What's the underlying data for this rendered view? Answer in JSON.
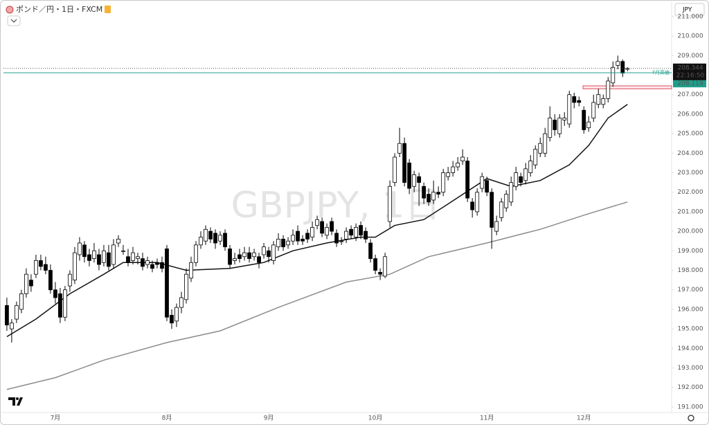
{
  "header": {
    "symbol": "ポンド／円・1日・FXCM",
    "currency": "JPY"
  },
  "chart_data": {
    "type": "candlestick",
    "watermark": "GBPJPY, 1日",
    "bull_color": "#ffffff",
    "bear_color": "#000000",
    "xlim": [
      -0.7,
      137.1
    ],
    "ylim": [
      190.75,
      211.67
    ],
    "xticks": [
      {
        "value": 10,
        "label": "7月"
      },
      {
        "value": 33,
        "label": "8月"
      },
      {
        "value": 54,
        "label": "9月"
      },
      {
        "value": 76,
        "label": "10月"
      },
      {
        "value": 99,
        "label": "11月"
      },
      {
        "value": 119,
        "label": "12月"
      }
    ],
    "yticks": [
      {
        "value": 191,
        "label": "191.000"
      },
      {
        "value": 192,
        "label": "192.000"
      },
      {
        "value": 193,
        "label": "193.000"
      },
      {
        "value": 194,
        "label": "194.000"
      },
      {
        "value": 195,
        "label": "195.000"
      },
      {
        "value": 196,
        "label": "196.000"
      },
      {
        "value": 197,
        "label": "197.000"
      },
      {
        "value": 198,
        "label": "198.000"
      },
      {
        "value": 199,
        "label": "199.000"
      },
      {
        "value": 200,
        "label": "200.000"
      },
      {
        "value": 201,
        "label": "201.000"
      },
      {
        "value": 202,
        "label": "202.000"
      },
      {
        "value": 203,
        "label": "203.000"
      },
      {
        "value": 204,
        "label": "204.000"
      },
      {
        "value": 205,
        "label": "205.000"
      },
      {
        "value": 206,
        "label": "206.000"
      },
      {
        "value": 207,
        "label": "207.000"
      },
      {
        "value": 208,
        "label": "208.000"
      },
      {
        "value": 209,
        "label": "209.000"
      },
      {
        "value": 210,
        "label": "210.000"
      },
      {
        "value": 211,
        "label": "211.000"
      }
    ],
    "last_price": 208.344,
    "countdown": "22:16:50",
    "levels": [
      {
        "label": "7月高値",
        "value": 208.119,
        "color": "#1e9e8a"
      }
    ],
    "zone": {
      "low": 207.3,
      "high": 207.45,
      "color": "#e0495a"
    },
    "moving_averages": [
      {
        "color": "#111111",
        "x": [
          0,
          6,
          13,
          20,
          24,
          31,
          37,
          46,
          53,
          59,
          66,
          73,
          76,
          80,
          86,
          91,
          99,
          104,
          110,
          116,
          120,
          124,
          128
        ],
        "values": [
          194.6,
          195.5,
          196.8,
          197.8,
          198.4,
          198.4,
          198.0,
          198.1,
          198.4,
          199.0,
          199.4,
          199.7,
          199.7,
          200.3,
          200.6,
          201.4,
          202.7,
          202.3,
          202.6,
          203.4,
          204.4,
          205.8,
          206.5
        ]
      },
      {
        "color": "#8c8c8c",
        "x": [
          0,
          10,
          20,
          33,
          44,
          56,
          70,
          79,
          87,
          99,
          110,
          120,
          128
        ],
        "values": [
          191.9,
          192.5,
          193.4,
          194.3,
          194.9,
          196.1,
          197.4,
          197.8,
          198.7,
          199.4,
          200.1,
          200.9,
          201.5
        ]
      }
    ],
    "candles": [
      [
        196.2,
        196.6,
        194.9,
        195.2
      ],
      [
        195.0,
        195.5,
        194.3,
        195.3
      ],
      [
        195.5,
        196.4,
        195.3,
        196.2
      ],
      [
        196.0,
        197.0,
        195.8,
        196.8
      ],
      [
        196.8,
        198.1,
        196.6,
        197.8
      ],
      [
        197.5,
        197.8,
        196.9,
        197.2
      ],
      [
        197.8,
        198.8,
        197.6,
        198.5
      ],
      [
        198.5,
        198.8,
        198.0,
        198.2
      ],
      [
        198.3,
        198.7,
        197.8,
        198.0
      ],
      [
        198.0,
        198.3,
        196.8,
        197.0
      ],
      [
        197.0,
        197.4,
        196.3,
        196.6
      ],
      [
        196.8,
        197.1,
        195.3,
        195.6
      ],
      [
        195.6,
        197.2,
        195.4,
        197.0
      ],
      [
        197.2,
        198.0,
        196.9,
        197.8
      ],
      [
        197.5,
        199.2,
        197.3,
        198.9
      ],
      [
        198.8,
        199.7,
        198.5,
        199.4
      ],
      [
        199.3,
        199.5,
        198.4,
        198.7
      ],
      [
        198.8,
        199.1,
        198.2,
        198.5
      ],
      [
        198.6,
        199.4,
        198.4,
        199.0
      ],
      [
        198.8,
        199.1,
        198.0,
        198.3
      ],
      [
        198.4,
        199.3,
        198.2,
        199.0
      ],
      [
        198.9,
        199.3,
        198.0,
        198.2
      ],
      [
        198.3,
        199.6,
        198.1,
        199.3
      ],
      [
        199.4,
        199.8,
        199.2,
        199.6
      ],
      [
        199.0,
        199.3,
        198.8,
        199.0
      ],
      [
        198.7,
        199.1,
        198.2,
        198.4
      ],
      [
        198.5,
        199.2,
        198.3,
        198.9
      ],
      [
        198.6,
        198.9,
        198.3,
        198.7
      ],
      [
        198.6,
        198.9,
        198.0,
        198.2
      ],
      [
        198.3,
        198.7,
        198.1,
        198.5
      ],
      [
        198.3,
        198.5,
        197.9,
        198.1
      ],
      [
        198.4,
        198.6,
        198.1,
        198.3
      ],
      [
        198.4,
        198.7,
        197.9,
        198.1
      ],
      [
        199.1,
        199.3,
        195.4,
        195.6
      ],
      [
        195.7,
        196.0,
        195.0,
        195.3
      ],
      [
        195.4,
        196.3,
        195.1,
        196.1
      ],
      [
        196.1,
        196.9,
        195.8,
        196.6
      ],
      [
        196.5,
        198.1,
        196.3,
        197.8
      ],
      [
        197.6,
        198.7,
        197.4,
        198.4
      ],
      [
        198.4,
        199.5,
        198.2,
        199.3
      ],
      [
        199.3,
        200.0,
        199.1,
        199.7
      ],
      [
        199.5,
        200.3,
        199.3,
        200.1
      ],
      [
        200.0,
        200.2,
        199.4,
        199.6
      ],
      [
        199.9,
        200.1,
        199.1,
        199.4
      ],
      [
        199.5,
        200.0,
        199.3,
        199.8
      ],
      [
        199.9,
        200.1,
        199.0,
        199.2
      ],
      [
        199.1,
        199.3,
        198.1,
        198.3
      ],
      [
        198.5,
        198.9,
        198.3,
        198.6
      ],
      [
        198.8,
        199.1,
        198.4,
        198.6
      ],
      [
        198.7,
        199.2,
        198.5,
        198.9
      ],
      [
        198.9,
        199.2,
        198.4,
        198.6
      ],
      [
        198.7,
        199.1,
        198.5,
        198.9
      ],
      [
        198.7,
        198.9,
        198.1,
        198.4
      ],
      [
        198.8,
        199.4,
        198.6,
        199.2
      ],
      [
        199.0,
        199.2,
        198.4,
        198.7
      ],
      [
        198.5,
        199.5,
        198.3,
        199.3
      ],
      [
        199.2,
        199.9,
        199.0,
        199.6
      ],
      [
        199.6,
        199.8,
        199.0,
        199.2
      ],
      [
        199.3,
        199.7,
        199.1,
        199.5
      ],
      [
        199.5,
        200.1,
        199.3,
        199.8
      ],
      [
        200.0,
        200.3,
        199.3,
        199.5
      ],
      [
        199.6,
        199.8,
        199.3,
        199.5
      ],
      [
        199.9,
        200.1,
        199.4,
        199.6
      ],
      [
        199.7,
        200.5,
        199.5,
        200.2
      ],
      [
        200.3,
        200.8,
        200.1,
        200.6
      ],
      [
        200.5,
        200.7,
        199.7,
        199.9
      ],
      [
        199.8,
        200.4,
        199.6,
        200.2
      ],
      [
        200.5,
        200.7,
        199.8,
        200.0
      ],
      [
        199.9,
        200.1,
        199.2,
        199.4
      ],
      [
        199.5,
        199.7,
        199.3,
        199.5
      ],
      [
        199.6,
        200.2,
        199.4,
        200.0
      ],
      [
        200.1,
        200.3,
        199.6,
        199.8
      ],
      [
        199.7,
        200.4,
        199.5,
        200.2
      ],
      [
        200.3,
        200.5,
        199.6,
        199.8
      ],
      [
        200.0,
        200.2,
        199.4,
        199.6
      ],
      [
        199.4,
        199.6,
        198.4,
        198.6
      ],
      [
        198.6,
        198.8,
        197.8,
        198.0
      ],
      [
        197.9,
        198.1,
        197.5,
        197.8
      ],
      [
        197.7,
        198.9,
        197.6,
        198.7
      ],
      [
        200.5,
        202.6,
        200.2,
        202.3
      ],
      [
        202.5,
        204.0,
        202.3,
        203.8
      ],
      [
        204.0,
        205.3,
        203.8,
        204.5
      ],
      [
        204.5,
        204.8,
        202.3,
        202.5
      ],
      [
        203.5,
        203.7,
        201.9,
        202.2
      ],
      [
        202.3,
        203.1,
        202.0,
        202.9
      ],
      [
        202.8,
        203.0,
        201.3,
        202.5
      ],
      [
        202.3,
        202.5,
        201.4,
        201.7
      ],
      [
        201.9,
        202.2,
        201.3,
        201.5
      ],
      [
        201.6,
        202.6,
        201.4,
        202.0
      ],
      [
        202.0,
        202.3,
        201.7,
        201.9
      ],
      [
        202.0,
        203.2,
        201.8,
        203.0
      ],
      [
        202.8,
        203.3,
        202.6,
        203.0
      ],
      [
        203.0,
        203.6,
        202.8,
        203.3
      ],
      [
        203.3,
        203.8,
        203.1,
        203.5
      ],
      [
        203.6,
        204.2,
        203.4,
        203.8
      ],
      [
        203.6,
        203.8,
        201.5,
        201.7
      ],
      [
        201.5,
        201.7,
        200.7,
        201.1
      ],
      [
        201.0,
        202.2,
        200.8,
        202.0
      ],
      [
        202.2,
        203.0,
        202.0,
        202.8
      ],
      [
        202.6,
        202.8,
        201.8,
        202.0
      ],
      [
        202.0,
        202.2,
        199.1,
        200.2
      ],
      [
        200.0,
        200.8,
        199.8,
        200.5
      ],
      [
        200.7,
        201.7,
        200.5,
        201.5
      ],
      [
        201.2,
        202.1,
        201.0,
        201.9
      ],
      [
        201.5,
        202.8,
        201.3,
        202.5
      ],
      [
        202.3,
        203.3,
        202.1,
        203.0
      ],
      [
        202.8,
        203.0,
        202.3,
        202.5
      ],
      [
        202.6,
        203.5,
        202.4,
        203.2
      ],
      [
        203.0,
        203.9,
        202.8,
        203.6
      ],
      [
        203.4,
        204.4,
        203.2,
        204.2
      ],
      [
        204.0,
        204.8,
        203.8,
        204.5
      ],
      [
        204.0,
        205.3,
        203.8,
        205.0
      ],
      [
        204.8,
        206.4,
        204.6,
        205.8
      ],
      [
        205.7,
        206.0,
        204.9,
        205.2
      ],
      [
        205.0,
        206.0,
        204.8,
        205.8
      ],
      [
        205.7,
        206.1,
        205.4,
        205.8
      ],
      [
        205.5,
        207.2,
        205.3,
        207.0
      ],
      [
        206.9,
        207.1,
        206.3,
        206.6
      ],
      [
        206.7,
        206.9,
        206.4,
        206.6
      ],
      [
        206.2,
        206.4,
        205.0,
        205.2
      ],
      [
        205.3,
        205.9,
        205.1,
        205.6
      ],
      [
        205.8,
        207.0,
        205.6,
        206.6
      ],
      [
        206.5,
        207.3,
        206.3,
        207.0
      ],
      [
        206.5,
        207.0,
        206.3,
        206.8
      ],
      [
        206.8,
        207.9,
        206.6,
        207.7
      ],
      [
        207.6,
        208.7,
        207.4,
        208.4
      ],
      [
        208.5,
        209.0,
        208.3,
        208.7
      ],
      [
        208.7,
        208.8,
        207.9,
        208.1
      ],
      [
        208.3,
        208.4,
        208.2,
        208.344
      ]
    ]
  }
}
